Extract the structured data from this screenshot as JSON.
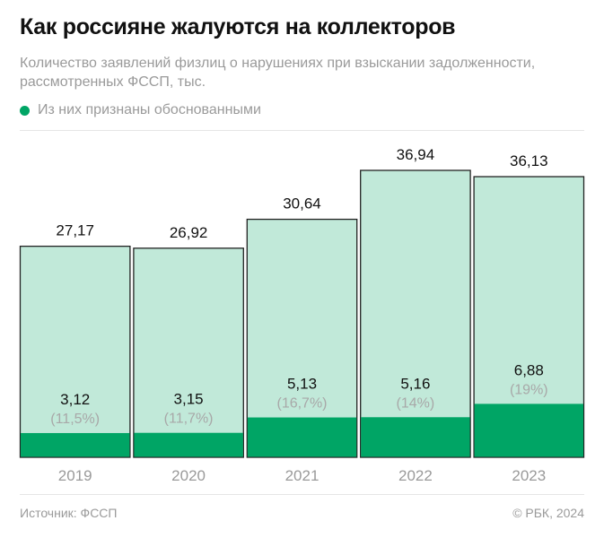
{
  "title": "Как россияне жалуются на коллекторов",
  "subtitle": "Количество заявлений физлиц о нарушениях при взыскании задолженности, рассмотренных ФССП, тыс.",
  "legend": {
    "label": "Из них признаны обоснованными"
  },
  "colors": {
    "total": "#c1e9d9",
    "justified": "#00a565",
    "border": "#222222"
  },
  "chart_data": {
    "type": "bar",
    "categories": [
      "2019",
      "2020",
      "2021",
      "2022",
      "2023"
    ],
    "series": [
      {
        "values": [
          27.17,
          26.92,
          30.64,
          36.94,
          36.13
        ],
        "labels": [
          "27,17",
          "26,92",
          "30,64",
          "36,94",
          "36,13"
        ]
      },
      {
        "name": "Из них признаны обоснованными",
        "values": [
          3.12,
          3.15,
          5.13,
          5.16,
          6.88
        ],
        "labels": [
          "3,12",
          "3,15",
          "5,13",
          "5,16",
          "6,88"
        ],
        "shares": [
          "(11,5%)",
          "(11,7%)",
          "(16,7%)",
          "(14%)",
          "(19%)"
        ]
      }
    ],
    "title": "",
    "xlabel": "",
    "ylabel": "",
    "ylim": [
      0,
      36.94
    ],
    "grid": false,
    "legend": "top-left"
  },
  "footer": {
    "source": "Источник: ФССП",
    "copyright": "© РБК, 2024"
  }
}
